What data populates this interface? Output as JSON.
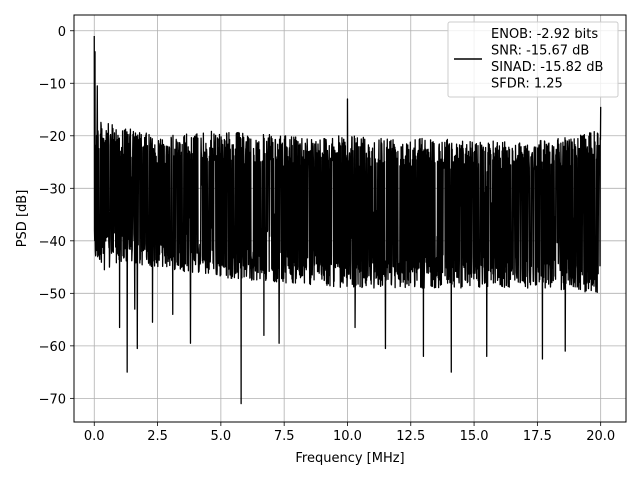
{
  "chart_data": {
    "type": "line",
    "xlabel": "Frequency [MHz]",
    "ylabel": "PSD [dB]",
    "xlim": [
      -0.8,
      21.0
    ],
    "ylim": [
      -74.5,
      3.0
    ],
    "xticks": [
      0.0,
      2.5,
      5.0,
      7.5,
      10.0,
      12.5,
      15.0,
      17.5,
      20.0
    ],
    "xtick_labels": [
      "0.0",
      "2.5",
      "5.0",
      "7.5",
      "10.0",
      "12.5",
      "15.0",
      "17.5",
      "20.0"
    ],
    "yticks": [
      0,
      -10,
      -20,
      -30,
      -40,
      -50,
      -60,
      -70
    ],
    "ytick_labels": [
      "0",
      "−10",
      "−20",
      "−30",
      "−40",
      "−50",
      "−60",
      "−70"
    ],
    "grid": true,
    "legend_placement": "top-right",
    "series": [
      {
        "name_lines": [
          "ENOB: -2.92 bits",
          "SNR: -15.67 dB",
          "SINAD: -15.82 dB",
          "SFDR: 1.25"
        ],
        "color": "#000000",
        "x_range": [
          0.0,
          20.0
        ],
        "peaks": [
          {
            "x": 0.0,
            "y": -1.0
          },
          {
            "x": 0.03,
            "y": -4.0
          },
          {
            "x": 0.12,
            "y": -10.5
          },
          {
            "x": 10.0,
            "y": -13.0
          },
          {
            "x": 20.0,
            "y": -14.5
          }
        ],
        "dips": [
          {
            "x": 0.4,
            "y": -45.5
          },
          {
            "x": 0.6,
            "y": -45.0
          },
          {
            "x": 1.0,
            "y": -56.5
          },
          {
            "x": 1.3,
            "y": -58.0
          },
          {
            "x": 1.3,
            "y": -65.0
          },
          {
            "x": 1.6,
            "y": -53.0
          },
          {
            "x": 1.7,
            "y": -60.5
          },
          {
            "x": 2.3,
            "y": -55.5
          },
          {
            "x": 3.1,
            "y": -54.0
          },
          {
            "x": 3.8,
            "y": -59.5
          },
          {
            "x": 5.8,
            "y": -71.0
          },
          {
            "x": 6.7,
            "y": -58.0
          },
          {
            "x": 7.3,
            "y": -59.5
          },
          {
            "x": 10.3,
            "y": -56.5
          },
          {
            "x": 11.5,
            "y": -60.5
          },
          {
            "x": 13.0,
            "y": -62.0
          },
          {
            "x": 14.1,
            "y": -65.0
          },
          {
            "x": 15.5,
            "y": -62.0
          },
          {
            "x": 17.7,
            "y": -62.5
          },
          {
            "x": 18.6,
            "y": -61.0
          }
        ],
        "upper_envelope": {
          "x": [
            0.0,
            2.5,
            5.0,
            7.5,
            10.0,
            12.5,
            15.0,
            17.5,
            20.0
          ],
          "y": [
            -17,
            -20,
            -19,
            -20,
            -20,
            -20,
            -21,
            -21,
            -19
          ]
        },
        "lower_envelope": {
          "x": [
            0.0,
            2.5,
            5.0,
            7.5,
            10.0,
            12.5,
            15.0,
            17.5,
            20.0
          ],
          "y": [
            -44,
            -45,
            -47,
            -48,
            -49,
            -49,
            -49,
            -49,
            -50
          ]
        }
      }
    ]
  }
}
